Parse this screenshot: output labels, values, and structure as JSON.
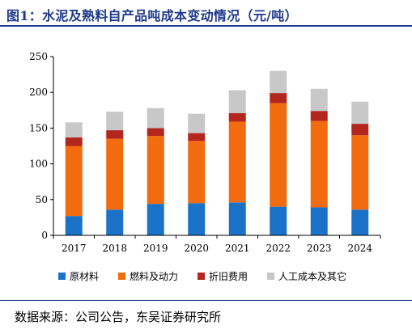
{
  "title": "图1：水泥及熟料自产品吨成本变动情况（元/吨）",
  "source": "数据来源：公司公告，东吴证券研究所",
  "chart_data": {
    "type": "bar",
    "stacked": true,
    "categories": [
      "2017",
      "2018",
      "2019",
      "2020",
      "2021",
      "2022",
      "2023",
      "2024"
    ],
    "series": [
      {
        "name": "原材料",
        "color": "#1a73c8",
        "values": [
          27,
          36,
          44,
          45,
          46,
          40,
          39,
          36
        ]
      },
      {
        "name": "燃料及动力",
        "color": "#f26b0f",
        "values": [
          98,
          99,
          95,
          87,
          113,
          145,
          121,
          104
        ]
      },
      {
        "name": "折旧费用",
        "color": "#b3261e",
        "values": [
          12,
          12,
          11,
          11,
          12,
          14,
          14,
          16
        ]
      },
      {
        "name": "人工成本及其它",
        "color": "#c8c8c8",
        "values": [
          21,
          26,
          28,
          27,
          32,
          31,
          31,
          31
        ]
      }
    ],
    "ylim": [
      0,
      250
    ],
    "yticks": [
      0,
      50,
      100,
      150,
      200,
      250
    ],
    "xlabel": "",
    "ylabel": "",
    "grid": false,
    "legend_position": "bottom"
  }
}
